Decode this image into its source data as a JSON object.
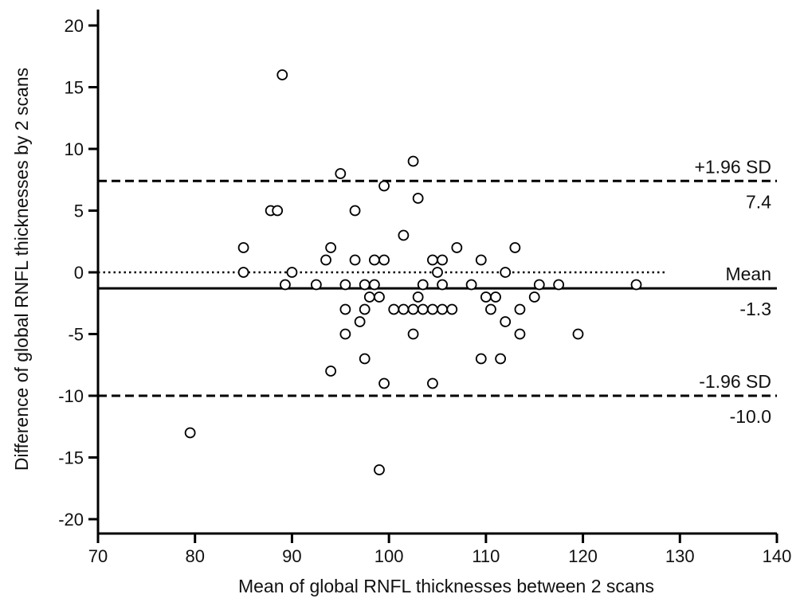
{
  "chart_data": {
    "type": "scatter",
    "title": "",
    "xlabel": "Mean of global RNFL thicknesses between 2 scans",
    "ylabel": "Difference of global RNFL thicknesses by 2 scans",
    "xlim": [
      70,
      140
    ],
    "ylim": [
      -21,
      21
    ],
    "x_ticks": [
      70,
      80,
      90,
      100,
      110,
      120,
      130,
      140
    ],
    "y_ticks": [
      -20,
      -15,
      -10,
      -5,
      0,
      5,
      10,
      15,
      20
    ],
    "grid": false,
    "zero_line": {
      "y": 0,
      "style": "dotted",
      "x_range": [
        70,
        128.5
      ]
    },
    "reference_lines": [
      {
        "id": "upper",
        "name": "+1.96 SD",
        "value": 7.4,
        "value_label": "7.4",
        "style": "dashed"
      },
      {
        "id": "mean",
        "name": "Mean",
        "value": -1.3,
        "value_label": "-1.3",
        "style": "solid"
      },
      {
        "id": "lower",
        "name": "-1.96 SD",
        "value": -10.0,
        "value_label": "-10.0",
        "style": "dashed"
      }
    ],
    "points": [
      {
        "x": 79.5,
        "y": -13
      },
      {
        "x": 85,
        "y": 2
      },
      {
        "x": 85,
        "y": 0
      },
      {
        "x": 87.8,
        "y": 5
      },
      {
        "x": 88.5,
        "y": 5
      },
      {
        "x": 89,
        "y": 16
      },
      {
        "x": 89.3,
        "y": -1
      },
      {
        "x": 90,
        "y": 0
      },
      {
        "x": 92.5,
        "y": -1
      },
      {
        "x": 93.5,
        "y": 1
      },
      {
        "x": 94,
        "y": 2
      },
      {
        "x": 94,
        "y": -8
      },
      {
        "x": 95,
        "y": 8
      },
      {
        "x": 95.5,
        "y": -1
      },
      {
        "x": 95.5,
        "y": -3
      },
      {
        "x": 95.5,
        "y": -5
      },
      {
        "x": 96.5,
        "y": 5
      },
      {
        "x": 96.5,
        "y": 1
      },
      {
        "x": 97,
        "y": -4
      },
      {
        "x": 97.5,
        "y": -1
      },
      {
        "x": 97.5,
        "y": -3
      },
      {
        "x": 97.5,
        "y": -7
      },
      {
        "x": 98,
        "y": -2
      },
      {
        "x": 98.5,
        "y": 1
      },
      {
        "x": 98.5,
        "y": -1
      },
      {
        "x": 99,
        "y": -2
      },
      {
        "x": 99,
        "y": -16
      },
      {
        "x": 99.5,
        "y": 7
      },
      {
        "x": 99.5,
        "y": 1
      },
      {
        "x": 99.5,
        "y": -9
      },
      {
        "x": 100.5,
        "y": -3
      },
      {
        "x": 101.5,
        "y": 3
      },
      {
        "x": 101.5,
        "y": -3
      },
      {
        "x": 102.5,
        "y": 9
      },
      {
        "x": 102.5,
        "y": -3
      },
      {
        "x": 102.5,
        "y": -5
      },
      {
        "x": 103,
        "y": 6
      },
      {
        "x": 103,
        "y": -2
      },
      {
        "x": 103.5,
        "y": -1
      },
      {
        "x": 103.5,
        "y": -3
      },
      {
        "x": 104.5,
        "y": 1
      },
      {
        "x": 104.5,
        "y": -3
      },
      {
        "x": 104.5,
        "y": -9
      },
      {
        "x": 105,
        "y": 0
      },
      {
        "x": 105.5,
        "y": 1
      },
      {
        "x": 105.5,
        "y": -1
      },
      {
        "x": 105.5,
        "y": -3
      },
      {
        "x": 106.5,
        "y": -3
      },
      {
        "x": 107,
        "y": 2
      },
      {
        "x": 108.5,
        "y": -1
      },
      {
        "x": 109.5,
        "y": 1
      },
      {
        "x": 109.5,
        "y": -7
      },
      {
        "x": 110,
        "y": -2
      },
      {
        "x": 110.5,
        "y": -3
      },
      {
        "x": 111,
        "y": -2
      },
      {
        "x": 111.5,
        "y": -7
      },
      {
        "x": 112,
        "y": 0
      },
      {
        "x": 112,
        "y": -4
      },
      {
        "x": 113,
        "y": 2
      },
      {
        "x": 113.5,
        "y": -3
      },
      {
        "x": 113.5,
        "y": -5
      },
      {
        "x": 115,
        "y": -2
      },
      {
        "x": 115.5,
        "y": -1
      },
      {
        "x": 117.5,
        "y": -1
      },
      {
        "x": 119.5,
        "y": -5
      },
      {
        "x": 125.5,
        "y": -1
      }
    ]
  }
}
